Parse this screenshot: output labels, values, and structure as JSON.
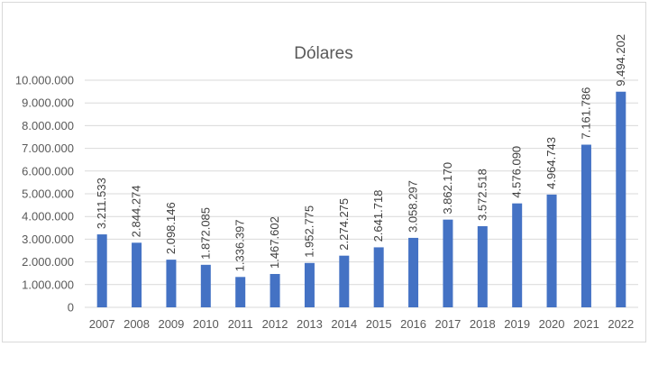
{
  "chart_data": {
    "type": "bar",
    "title": "Dólares",
    "xlabel": "",
    "ylabel": "",
    "ylim": [
      0,
      10000000
    ],
    "grid": true,
    "legend": "none",
    "bar_color": "#4472c4",
    "grid_color": "#d9d9d9",
    "categories": [
      "2007",
      "2008",
      "2009",
      "2010",
      "2011",
      "2012",
      "2013",
      "2014",
      "2015",
      "2016",
      "2017",
      "2018",
      "2019",
      "2020",
      "2021",
      "2022"
    ],
    "values": [
      3211533,
      2844274,
      2098146,
      1872085,
      1336397,
      1467602,
      1952775,
      2274275,
      2641718,
      3058297,
      3862170,
      3572518,
      4576090,
      4964743,
      7161786,
      9494202
    ],
    "value_labels": [
      "3.211.533",
      "2.844.274",
      "2.098.146",
      "1.872.085",
      "1.336.397",
      "1.467.602",
      "1.952.775",
      "2.274.275",
      "2.641.718",
      "3.058.297",
      "3.862.170",
      "3.572.518",
      "4.576.090",
      "4.964.743",
      "7.161.786",
      "9.494.202"
    ],
    "y_ticks": [
      0,
      1000000,
      2000000,
      3000000,
      4000000,
      5000000,
      6000000,
      7000000,
      8000000,
      9000000,
      10000000
    ],
    "y_tick_labels": [
      "0",
      "1.000.000",
      "2.000.000",
      "3.000.000",
      "4.000.000",
      "5.000.000",
      "6.000.000",
      "7.000.000",
      "8.000.000",
      "9.000.000",
      "10.000.000"
    ]
  }
}
